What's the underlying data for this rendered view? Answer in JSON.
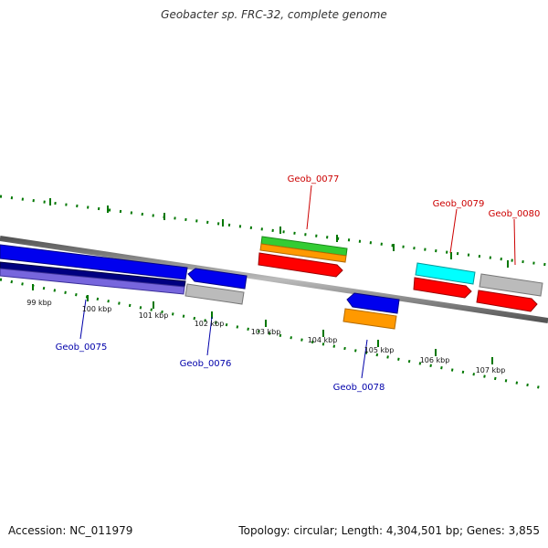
{
  "title": "Geobacter sp. FRC-32, complete genome",
  "footer": {
    "accession": "Accession: NC_011979",
    "summary": "Topology: circular; Length: 4,304,501 bp; Genes: 3,855"
  },
  "ticks": [
    "99 kbp",
    "100 kbp",
    "101 kbp",
    "102 kbp",
    "103 kbp",
    "104 kbp",
    "105 kbp",
    "106 kbp",
    "107 kbp"
  ],
  "genes": {
    "geob_0075": "Geob_0075",
    "geob_0076": "Geob_0076",
    "geob_0077": "Geob_0077",
    "geob_0078": "Geob_0078",
    "geob_0079": "Geob_0079",
    "geob_0080": "Geob_0080"
  },
  "colors": {
    "forward_label": "#cc0000",
    "reverse_label": "#0000aa",
    "tick": "#007700",
    "red": "#ff0000",
    "blue": "#0000ee",
    "green": "#33cc33",
    "orange": "#ff9900",
    "cyan": "#00ffff",
    "gray": "#bbbbbb",
    "navy": "#000080",
    "lavender": "#7766dd"
  }
}
